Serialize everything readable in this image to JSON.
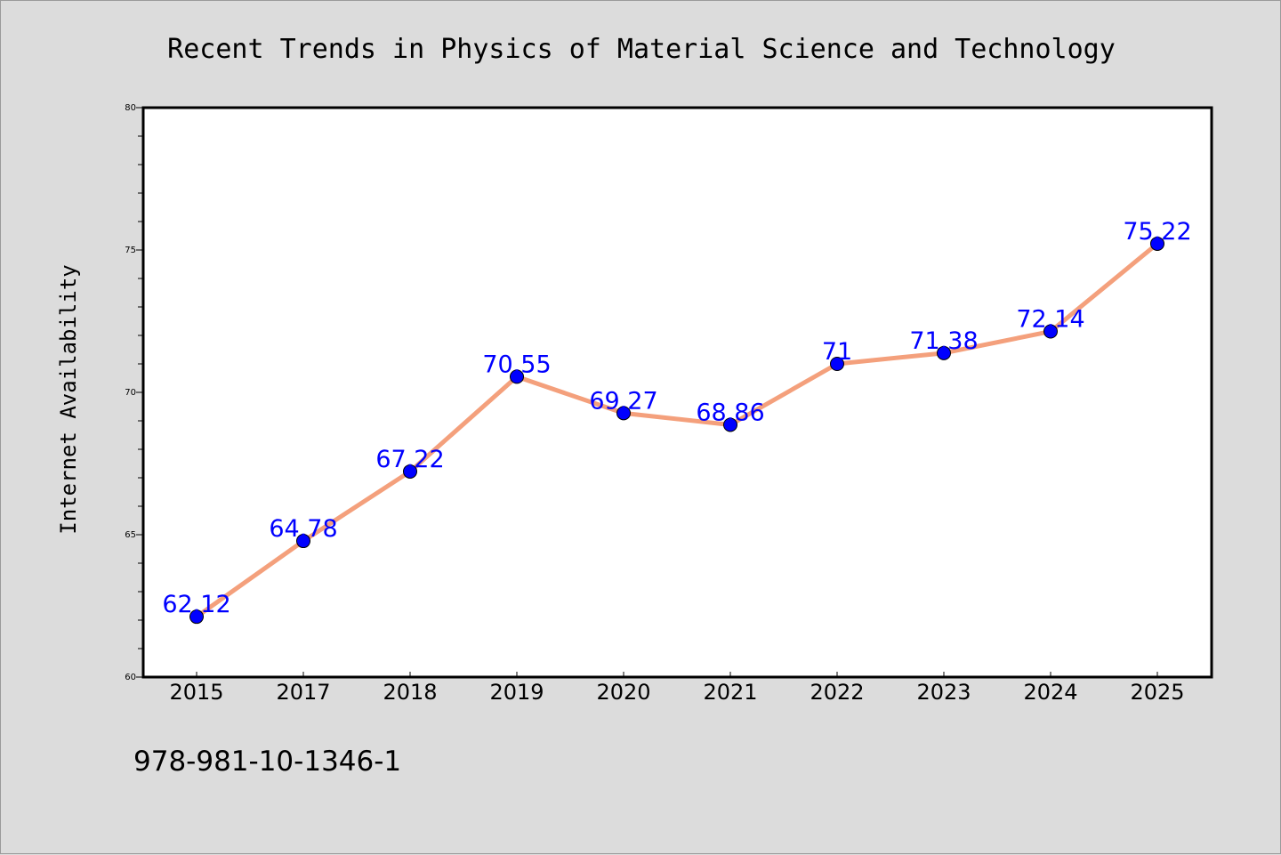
{
  "chart_data": {
    "type": "line",
    "title": "Recent Trends in Physics of Material Science and Technology",
    "xlabel": "",
    "ylabel": "Internet Availability",
    "categories": [
      "2015",
      "2017",
      "2018",
      "2019",
      "2020",
      "2021",
      "2022",
      "2023",
      "2024",
      "2025"
    ],
    "series": [
      {
        "values": [
          62.12,
          64.78,
          67.22,
          70.55,
          69.27,
          68.86,
          71,
          71.38,
          72.14,
          75.22
        ],
        "line_color": "#f4a07c",
        "marker_color": "#0000ff"
      }
    ],
    "data_labels": [
      "62.12",
      "64.78",
      "67.22",
      "70.55",
      "69.27",
      "68.86",
      "71",
      "71.38",
      "72.14",
      "75.22"
    ],
    "label_color": "#0000ff",
    "ylim": [
      60,
      80
    ],
    "yticks": [
      "60",
      "65",
      "70",
      "75",
      "80"
    ],
    "grid": false,
    "legend": "none"
  },
  "footer": {
    "isbn": "978-981-10-1346-1"
  },
  "colors": {
    "background": "#dcdcdc",
    "plot_background": "#ffffff",
    "axis": "#000000"
  }
}
